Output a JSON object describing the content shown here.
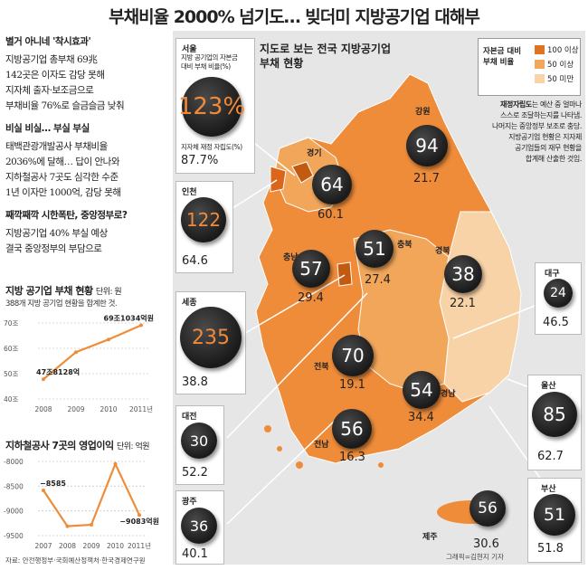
{
  "title": "부채비율 2000% 넘기도… 빚더미 지방공기업 대해부",
  "left": {
    "sec1_h": "별거 아니네 '착시효과'",
    "sec1": [
      "지방공기업 총부채 69兆",
      "142곳은 이자도 감당 못해",
      "지자체 출자·보조금으로",
      "부채비율 76%로 슬금슬금 낮춰"
    ],
    "sec2_h": "비실 비실… 부실 부실",
    "sec2": [
      "태백관광개발공사 부채비율",
      "2036%에 달해… 답이 안나와",
      "지하철공사 7곳도 심각한 수준",
      "1년 이자만 1000억, 감당 못해"
    ],
    "sec3_h": "째깍째깍 시한폭탄, 중앙정부로?",
    "sec3": [
      "지방공기업 40% 부실 예상",
      "결국 중앙정부의 부담으로"
    ]
  },
  "debt_chart": {
    "title": "지방 공기업 부채 현황",
    "unit": "단위: 원",
    "sub": "388개 지방 공기업 현황을 합계한 것.",
    "label_start": "47조8128억",
    "label_end": "69조1034억원"
  },
  "op_chart": {
    "title": "지하철공사 7곳의 영업이익",
    "unit": "단위: 억원",
    "label_start": "−8585",
    "label_end": "−9083억원",
    "source": "자료: 안전행정부·국회예산정책처·한국경제연구원"
  },
  "chart_data": [
    {
      "type": "line",
      "title": "지방 공기업 부채 현황",
      "x": [
        "2008",
        "2009",
        "2010",
        "2011년"
      ],
      "y": [
        47.8128,
        58.5,
        63.5,
        69.1034
      ],
      "yticks": [
        "40조",
        "50조",
        "60조",
        "70조"
      ],
      "ylim": [
        40,
        70
      ]
    },
    {
      "type": "line",
      "title": "지하철공사 7곳의 영업이익",
      "x": [
        "2007",
        "2008",
        "2009",
        "2010",
        "2011년"
      ],
      "y": [
        -8585,
        -9310,
        -9280,
        -8050,
        -9083
      ],
      "yticks": [
        "-8000",
        "-8500",
        "-9000",
        "-9500"
      ],
      "ylim": [
        -9500,
        -8000
      ]
    }
  ],
  "map": {
    "title_line1": "지도로 보는 전국 지방공기업",
    "title_line2": "부채 현황",
    "legend_title": "자본금 대비\n부채 비율",
    "legend": [
      {
        "label": "100 이상",
        "color": "#e0731f"
      },
      {
        "label": "50 이상",
        "color": "#f2a65a"
      },
      {
        "label": "50 미만",
        "color": "#f9d3a8"
      }
    ],
    "note_bold": "재정자립도",
    "note": [
      "는 예산 중 얼마나",
      "스스로 조달하는지를 나타냄.",
      "나머지는 중앙정부 보조로 충당.",
      "지방공기업 현황은 지자체",
      "공기업들의 재무 현황을",
      "합계해 산출한 것임."
    ],
    "seoul_name": "서울",
    "seoul_desc1": "지방 공기업의 자본금",
    "seoul_desc2": "대비 부채 비율(%)",
    "seoul_fin_label": "지자체 재정 자립도(%)",
    "credit": "그래픽=김현지 기자",
    "regions": [
      {
        "name": "서울",
        "debt": "123%",
        "fin": "87.7%"
      },
      {
        "name": "강원",
        "debt": "94",
        "fin": "21.7"
      },
      {
        "name": "경기",
        "debt": "64",
        "fin": "60.1"
      },
      {
        "name": "인천",
        "debt": "122",
        "fin": "64.6"
      },
      {
        "name": "충남",
        "debt": "57",
        "fin": "29.4"
      },
      {
        "name": "충북",
        "debt": "51",
        "fin": "27.4"
      },
      {
        "name": "경북",
        "debt": "38",
        "fin": "22.1"
      },
      {
        "name": "대구",
        "debt": "24",
        "fin": "46.5"
      },
      {
        "name": "세종",
        "debt": "235",
        "fin": "38.8"
      },
      {
        "name": "전북",
        "debt": "70",
        "fin": "19.1"
      },
      {
        "name": "경남",
        "debt": "54",
        "fin": "34.4"
      },
      {
        "name": "울산",
        "debt": "85",
        "fin": "62.7"
      },
      {
        "name": "대전",
        "debt": "30",
        "fin": "52.2"
      },
      {
        "name": "전남",
        "debt": "56",
        "fin": "16.3"
      },
      {
        "name": "광주",
        "debt": "36",
        "fin": "40.1"
      },
      {
        "name": "제주",
        "debt": "56",
        "fin": "30.6"
      },
      {
        "name": "부산",
        "debt": "51",
        "fin": "51.8"
      }
    ]
  }
}
